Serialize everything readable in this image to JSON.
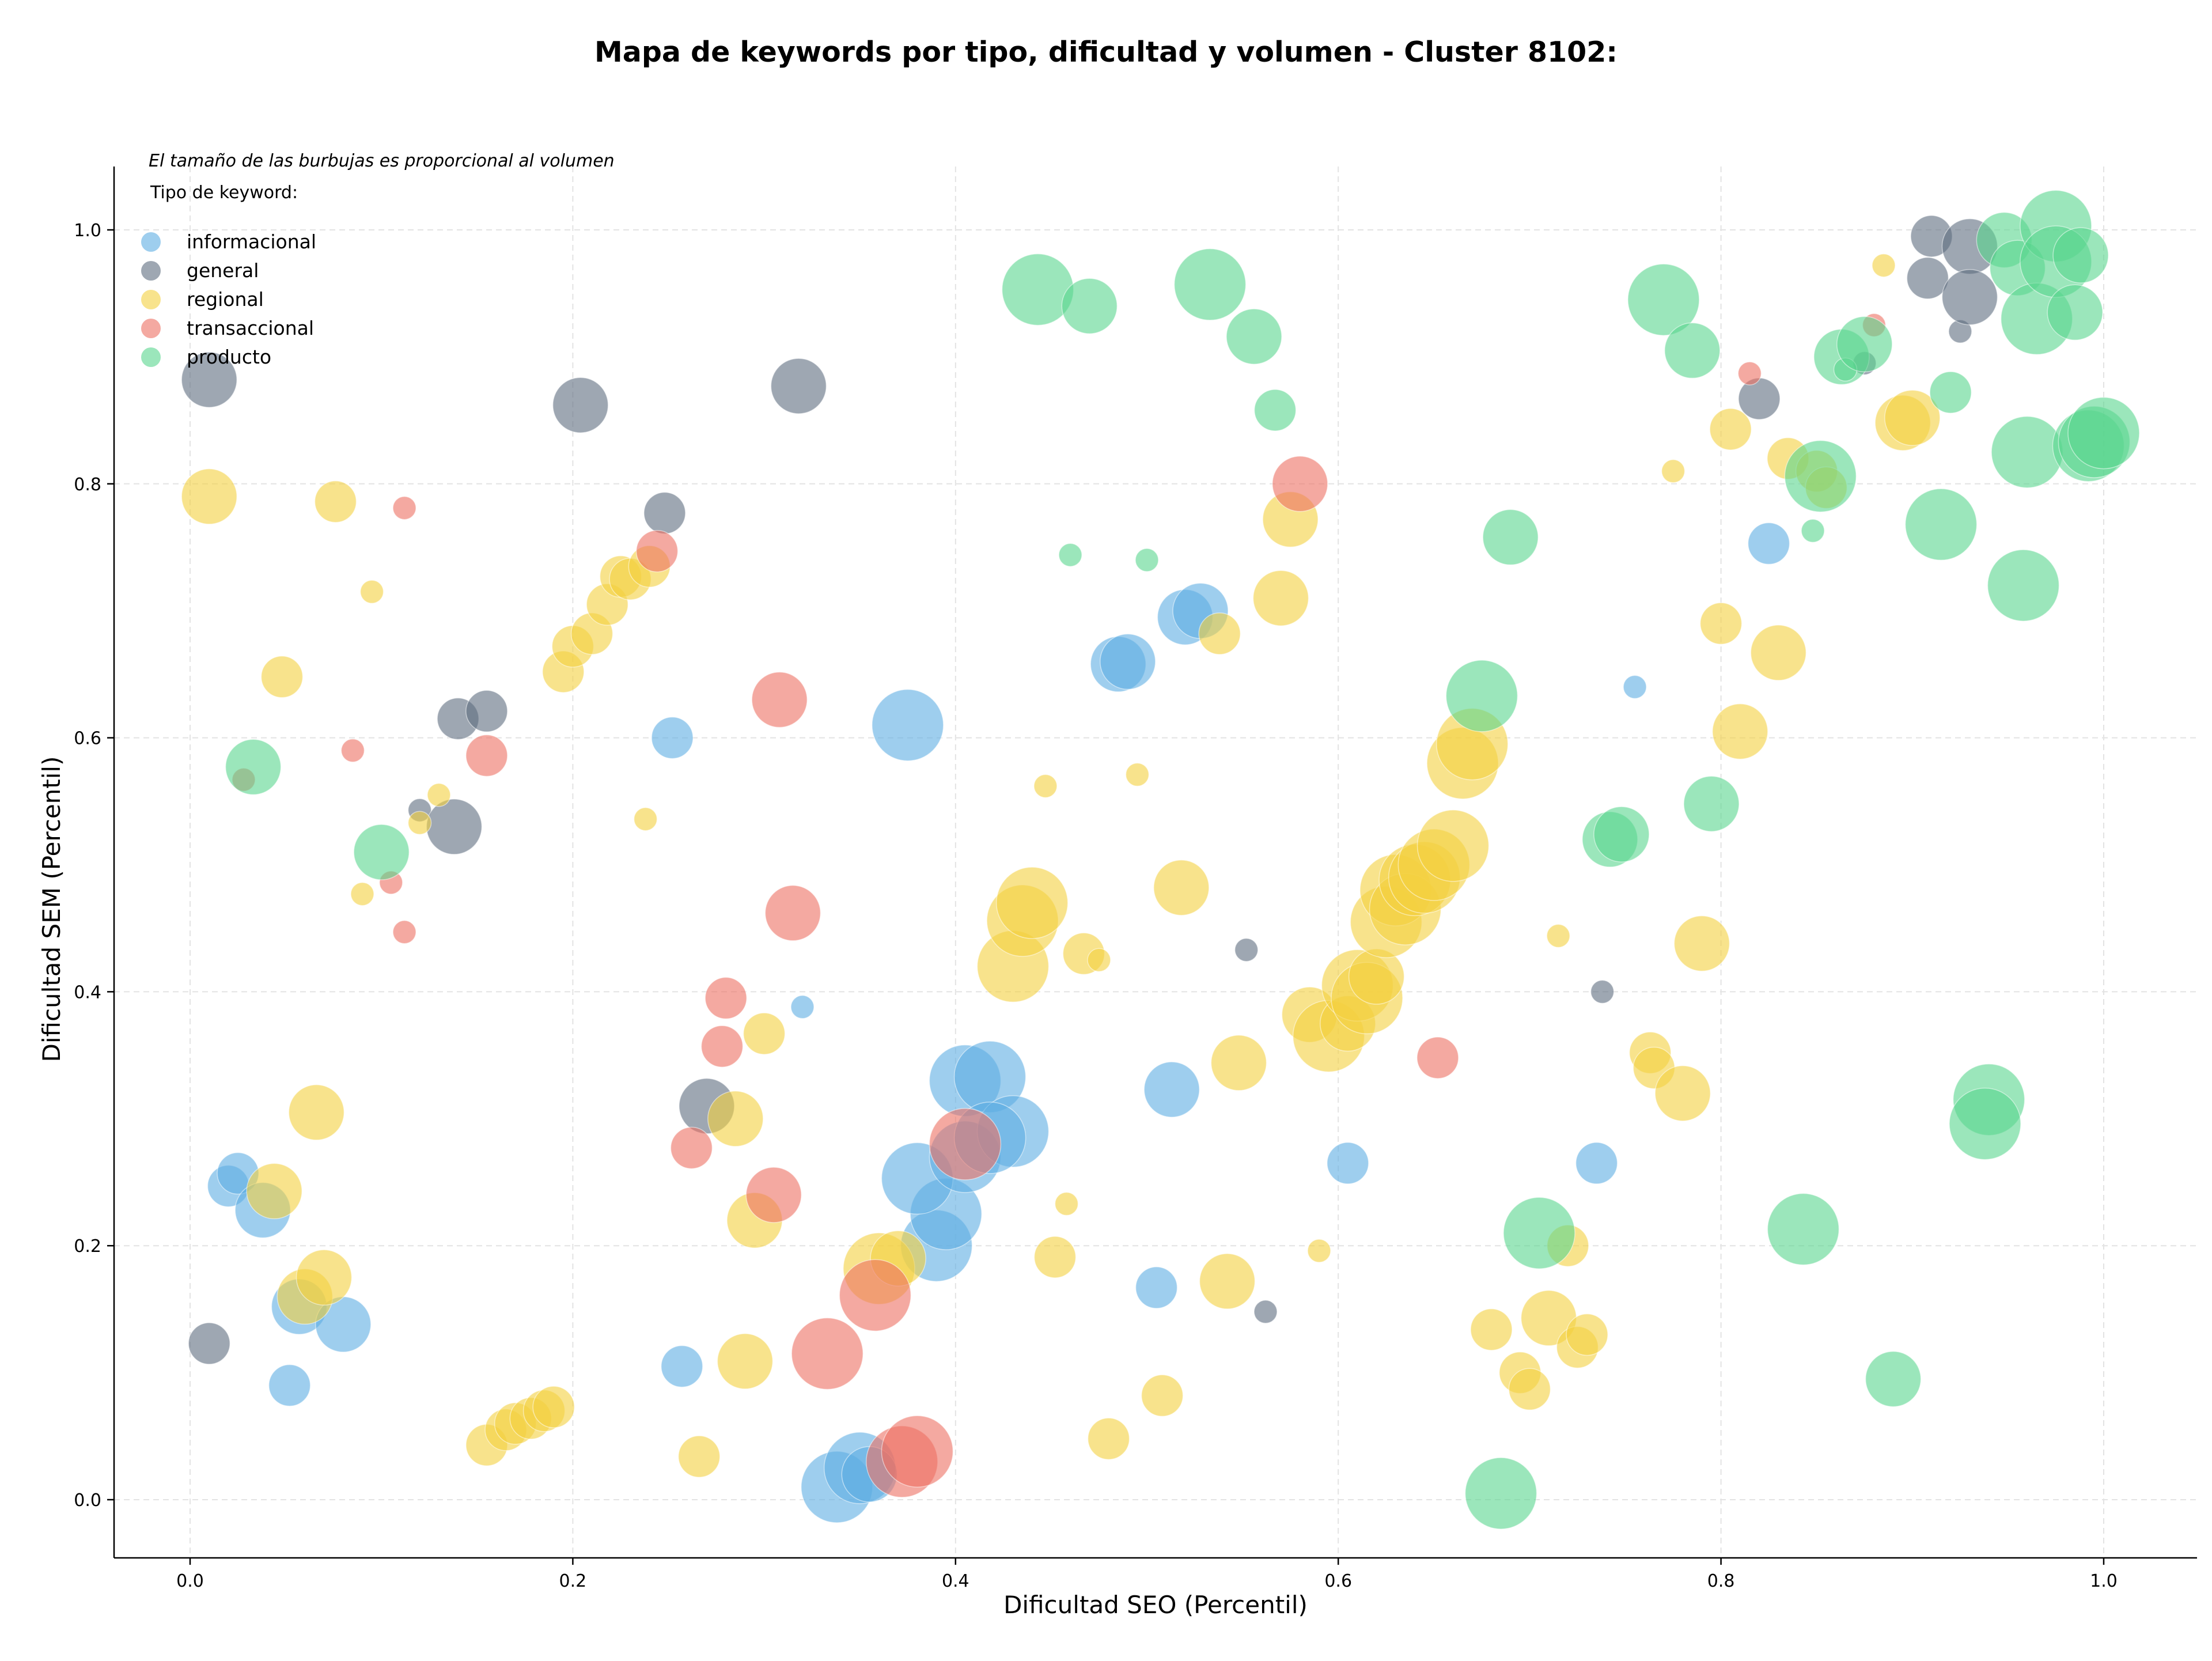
{
  "chart_data": {
    "type": "scatter",
    "title": "Mapa de keywords por tipo, dificultad y volumen - Cluster 8102:",
    "xlabel": "Dificultad SEO (Percentil)",
    "ylabel": "Dificultad SEM (Percentil)",
    "xlim": [
      -0.04,
      1.05
    ],
    "ylim": [
      -0.045,
      1.05
    ],
    "xticks": [
      "0.0",
      "0.2",
      "0.4",
      "0.6",
      "0.8",
      "1.0"
    ],
    "yticks": [
      "0.0",
      "0.2",
      "0.4",
      "0.6",
      "0.8",
      "1.0"
    ],
    "grid": true,
    "note": "El tamaño de las burbujas es proporcional al volumen",
    "legend_title": "Tipo de keyword:",
    "legend_position": "top-left",
    "bubble_size_meaning": "volumen",
    "series": [
      {
        "name": "informacional",
        "color": "#5DADE2",
        "points": [
          [
            0.02,
            0.247,
            2
          ],
          [
            0.025,
            0.257,
            2
          ],
          [
            0.038,
            0.228,
            3
          ],
          [
            0.052,
            0.09,
            2
          ],
          [
            0.057,
            0.152,
            3
          ],
          [
            0.08,
            0.138,
            3
          ],
          [
            0.252,
            0.6,
            2
          ],
          [
            0.257,
            0.105,
            2
          ],
          [
            0.32,
            0.388,
            1
          ],
          [
            0.375,
            0.61,
            4
          ],
          [
            0.39,
            0.2,
            4
          ],
          [
            0.395,
            0.225,
            4
          ],
          [
            0.38,
            0.253,
            4
          ],
          [
            0.405,
            0.27,
            4
          ],
          [
            0.405,
            0.33,
            4
          ],
          [
            0.418,
            0.333,
            4
          ],
          [
            0.43,
            0.29,
            4
          ],
          [
            0.418,
            0.285,
            4
          ],
          [
            0.338,
            0.01,
            4
          ],
          [
            0.35,
            0.025,
            4
          ],
          [
            0.355,
            0.02,
            3
          ],
          [
            0.485,
            0.658,
            3
          ],
          [
            0.49,
            0.66,
            3
          ],
          [
            0.52,
            0.695,
            3
          ],
          [
            0.528,
            0.7,
            3
          ],
          [
            0.513,
            0.323,
            3
          ],
          [
            0.505,
            0.167,
            2
          ],
          [
            0.605,
            0.265,
            2
          ],
          [
            0.735,
            0.265,
            2
          ],
          [
            0.755,
            0.64,
            1
          ],
          [
            0.825,
            0.753,
            2
          ]
        ]
      },
      {
        "name": "general",
        "color": "#5D6D7E",
        "points": [
          [
            0.01,
            0.882,
            3
          ],
          [
            0.01,
            0.123,
            2
          ],
          [
            0.204,
            0.862,
            3
          ],
          [
            0.248,
            0.777,
            2
          ],
          [
            0.14,
            0.615,
            2
          ],
          [
            0.155,
            0.621,
            2
          ],
          [
            0.12,
            0.543,
            1
          ],
          [
            0.138,
            0.53,
            3
          ],
          [
            0.318,
            0.877,
            3
          ],
          [
            0.27,
            0.31,
            3
          ],
          [
            0.552,
            0.433,
            1
          ],
          [
            0.562,
            0.148,
            1
          ],
          [
            0.738,
            0.4,
            1
          ],
          [
            0.82,
            0.867,
            2
          ],
          [
            0.91,
            0.995,
            2
          ],
          [
            0.908,
            0.962,
            2
          ],
          [
            0.925,
            0.92,
            1
          ],
          [
            0.93,
            0.987,
            3
          ],
          [
            0.93,
            0.947,
            3
          ],
          [
            0.875,
            0.895,
            1
          ]
        ]
      },
      {
        "name": "regional",
        "color": "#F4D03F",
        "points": [
          [
            0.01,
            0.79,
            3
          ],
          [
            0.076,
            0.786,
            2
          ],
          [
            0.095,
            0.715,
            1
          ],
          [
            0.048,
            0.648,
            2
          ],
          [
            0.06,
            0.16,
            3
          ],
          [
            0.07,
            0.175,
            3
          ],
          [
            0.044,
            0.243,
            3
          ],
          [
            0.066,
            0.305,
            3
          ],
          [
            0.09,
            0.477,
            1
          ],
          [
            0.12,
            0.533,
            1
          ],
          [
            0.13,
            0.555,
            1
          ],
          [
            0.195,
            0.652,
            2
          ],
          [
            0.2,
            0.672,
            2
          ],
          [
            0.21,
            0.682,
            2
          ],
          [
            0.218,
            0.705,
            2
          ],
          [
            0.225,
            0.727,
            2
          ],
          [
            0.23,
            0.725,
            2
          ],
          [
            0.24,
            0.735,
            2
          ],
          [
            0.238,
            0.536,
            1
          ],
          [
            0.155,
            0.043,
            2
          ],
          [
            0.165,
            0.055,
            2
          ],
          [
            0.17,
            0.06,
            2
          ],
          [
            0.178,
            0.064,
            2
          ],
          [
            0.185,
            0.07,
            2
          ],
          [
            0.19,
            0.073,
            2
          ],
          [
            0.266,
            0.034,
            2
          ],
          [
            0.29,
            0.109,
            3
          ],
          [
            0.285,
            0.3,
            3
          ],
          [
            0.295,
            0.22,
            3
          ],
          [
            0.3,
            0.367,
            2
          ],
          [
            0.36,
            0.182,
            4
          ],
          [
            0.37,
            0.19,
            3
          ],
          [
            0.43,
            0.42,
            4
          ],
          [
            0.435,
            0.456,
            4
          ],
          [
            0.44,
            0.47,
            4
          ],
          [
            0.467,
            0.43,
            2
          ],
          [
            0.475,
            0.425,
            1
          ],
          [
            0.447,
            0.562,
            1
          ],
          [
            0.458,
            0.233,
            1
          ],
          [
            0.452,
            0.191,
            2
          ],
          [
            0.48,
            0.048,
            2
          ],
          [
            0.495,
            0.571,
            1
          ],
          [
            0.508,
            0.082,
            2
          ],
          [
            0.518,
            0.482,
            3
          ],
          [
            0.538,
            0.682,
            2
          ],
          [
            0.542,
            0.172,
            3
          ],
          [
            0.548,
            0.344,
            3
          ],
          [
            0.57,
            0.71,
            3
          ],
          [
            0.575,
            0.772,
            3
          ],
          [
            0.59,
            0.196,
            1
          ],
          [
            0.585,
            0.382,
            3
          ],
          [
            0.595,
            0.365,
            4
          ],
          [
            0.605,
            0.375,
            3
          ],
          [
            0.61,
            0.405,
            4
          ],
          [
            0.615,
            0.395,
            4
          ],
          [
            0.62,
            0.412,
            3
          ],
          [
            0.625,
            0.455,
            4
          ],
          [
            0.63,
            0.48,
            4
          ],
          [
            0.635,
            0.465,
            4
          ],
          [
            0.64,
            0.488,
            4
          ],
          [
            0.645,
            0.49,
            4
          ],
          [
            0.65,
            0.5,
            4
          ],
          [
            0.66,
            0.515,
            4
          ],
          [
            0.665,
            0.58,
            4
          ],
          [
            0.67,
            0.595,
            4
          ],
          [
            0.68,
            0.134,
            2
          ],
          [
            0.695,
            0.1,
            2
          ],
          [
            0.7,
            0.087,
            2
          ],
          [
            0.71,
            0.143,
            3
          ],
          [
            0.715,
            0.444,
            1
          ],
          [
            0.72,
            0.2,
            2
          ],
          [
            0.725,
            0.12,
            2
          ],
          [
            0.73,
            0.13,
            2
          ],
          [
            0.763,
            0.352,
            2
          ],
          [
            0.765,
            0.34,
            2
          ],
          [
            0.78,
            0.32,
            3
          ],
          [
            0.775,
            0.81,
            1
          ],
          [
            0.79,
            0.438,
            3
          ],
          [
            0.8,
            0.69,
            2
          ],
          [
            0.805,
            0.843,
            2
          ],
          [
            0.81,
            0.605,
            3
          ],
          [
            0.83,
            0.667,
            3
          ],
          [
            0.835,
            0.82,
            2
          ],
          [
            0.85,
            0.81,
            2
          ],
          [
            0.855,
            0.797,
            2
          ],
          [
            0.885,
            0.972,
            1
          ],
          [
            0.895,
            0.848,
            3
          ],
          [
            0.9,
            0.852,
            3
          ]
        ]
      },
      {
        "name": "transaccional",
        "color": "#EC7063",
        "points": [
          [
            0.028,
            0.567,
            1
          ],
          [
            0.085,
            0.59,
            1
          ],
          [
            0.105,
            0.486,
            1
          ],
          [
            0.112,
            0.781,
            1
          ],
          [
            0.112,
            0.447,
            1
          ],
          [
            0.155,
            0.586,
            2
          ],
          [
            0.244,
            0.747,
            2
          ],
          [
            0.262,
            0.277,
            2
          ],
          [
            0.278,
            0.357,
            2
          ],
          [
            0.28,
            0.395,
            2
          ],
          [
            0.308,
            0.63,
            3
          ],
          [
            0.305,
            0.24,
            3
          ],
          [
            0.315,
            0.462,
            3
          ],
          [
            0.333,
            0.115,
            4
          ],
          [
            0.358,
            0.161,
            4
          ],
          [
            0.372,
            0.03,
            4
          ],
          [
            0.38,
            0.038,
            4
          ],
          [
            0.405,
            0.28,
            4
          ],
          [
            0.58,
            0.8,
            3
          ],
          [
            0.652,
            0.348,
            2
          ],
          [
            0.815,
            0.887,
            1
          ],
          [
            0.88,
            0.925,
            1
          ]
        ]
      },
      {
        "name": "producto",
        "color": "#58D68D",
        "points": [
          [
            0.033,
            0.577,
            3
          ],
          [
            0.1,
            0.51,
            3
          ],
          [
            0.443,
            0.953,
            4
          ],
          [
            0.47,
            0.94,
            3
          ],
          [
            0.46,
            0.744,
            1
          ],
          [
            0.5,
            0.74,
            1
          ],
          [
            0.533,
            0.957,
            4
          ],
          [
            0.556,
            0.916,
            3
          ],
          [
            0.567,
            0.858,
            2
          ],
          [
            0.675,
            0.633,
            4
          ],
          [
            0.69,
            0.758,
            3
          ],
          [
            0.685,
            0.005,
            4
          ],
          [
            0.705,
            0.21,
            4
          ],
          [
            0.742,
            0.52,
            3
          ],
          [
            0.748,
            0.524,
            3
          ],
          [
            0.77,
            0.945,
            4
          ],
          [
            0.785,
            0.905,
            3
          ],
          [
            0.795,
            0.548,
            3
          ],
          [
            0.843,
            0.213,
            4
          ],
          [
            0.848,
            0.763,
            1
          ],
          [
            0.852,
            0.806,
            4
          ],
          [
            0.863,
            0.9,
            3
          ],
          [
            0.865,
            0.89,
            1
          ],
          [
            0.875,
            0.91,
            3
          ],
          [
            0.89,
            0.095,
            3
          ],
          [
            0.92,
            0.872,
            2
          ],
          [
            0.915,
            0.768,
            4
          ],
          [
            0.94,
            0.315,
            4
          ],
          [
            0.938,
            0.296,
            4
          ],
          [
            0.948,
            0.992,
            3
          ],
          [
            0.955,
            0.97,
            3
          ],
          [
            0.958,
            0.72,
            4
          ],
          [
            0.96,
            0.825,
            4
          ],
          [
            0.965,
            0.93,
            4
          ],
          [
            0.975,
            1.003,
            4
          ],
          [
            0.975,
            0.975,
            4
          ],
          [
            0.985,
            0.935,
            3
          ],
          [
            0.988,
            0.98,
            3
          ],
          [
            0.992,
            0.83,
            4
          ],
          [
            0.995,
            0.833,
            4
          ],
          [
            1.0,
            0.84,
            4
          ]
        ]
      }
    ]
  }
}
